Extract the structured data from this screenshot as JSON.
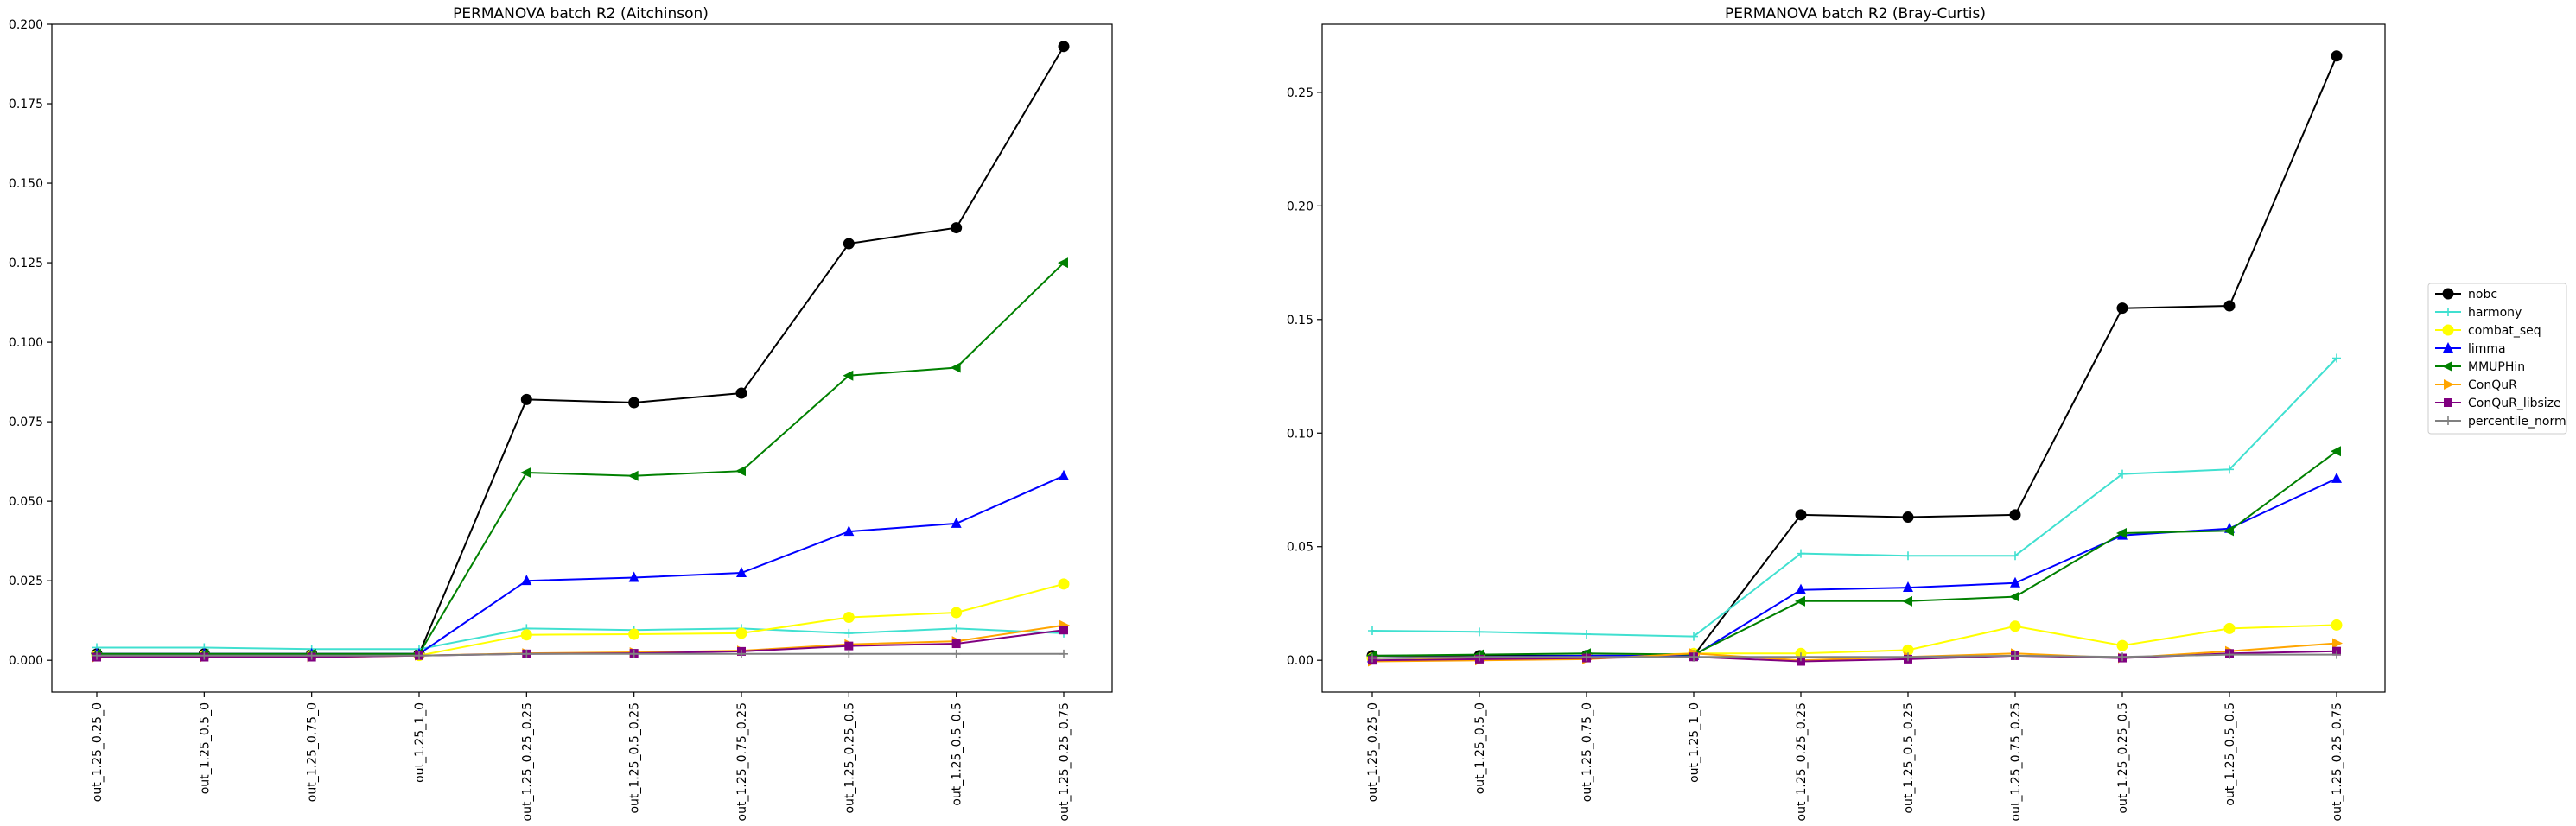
{
  "chart_data": [
    {
      "type": "line",
      "title": "PERMANOVA batch R2 (Aitchinson)",
      "xlabel": "",
      "ylabel": "",
      "categories": [
        "out_1.25_0.25_0",
        "out_1.25_0.5_0",
        "out_1.25_0.75_0",
        "out_1.25_1_0",
        "out_1.25_0.25_0.25",
        "out_1.25_0.5_0.25",
        "out_1.25_0.75_0.25",
        "out_1.25_0.25_0.5",
        "out_1.25_0.5_0.5",
        "out_1.25_0.25_0.75"
      ],
      "ylim": [
        -0.01,
        0.2
      ],
      "yticks": [
        0.0,
        0.025,
        0.05,
        0.075,
        0.1,
        0.125,
        0.15,
        0.175,
        0.2
      ],
      "ytick_labels": [
        "0.000",
        "0.025",
        "0.050",
        "0.075",
        "0.100",
        "0.125",
        "0.150",
        "0.175",
        "0.200"
      ],
      "grid": false,
      "series": [
        {
          "name": "nobc",
          "values": [
            0.002,
            0.002,
            0.002,
            0.002,
            0.082,
            0.081,
            0.084,
            0.131,
            0.136,
            0.193
          ]
        },
        {
          "name": "harmony",
          "values": [
            0.004,
            0.004,
            0.0035,
            0.0035,
            0.01,
            0.0095,
            0.01,
            0.0085,
            0.01,
            0.0085
          ]
        },
        {
          "name": "combat_seq",
          "values": [
            0.0015,
            0.0015,
            0.0015,
            0.0015,
            0.008,
            0.0082,
            0.0085,
            0.0135,
            0.015,
            0.024
          ]
        },
        {
          "name": "limma",
          "values": [
            0.002,
            0.002,
            0.002,
            0.002,
            0.025,
            0.026,
            0.0275,
            0.0405,
            0.043,
            0.058
          ]
        },
        {
          "name": "MMUPHin",
          "values": [
            0.002,
            0.002,
            0.002,
            0.002,
            0.059,
            0.058,
            0.0595,
            0.0895,
            0.092,
            0.125
          ]
        },
        {
          "name": "ConQuR",
          "values": [
            0.001,
            0.001,
            0.001,
            0.0015,
            0.0022,
            0.0025,
            0.003,
            0.005,
            0.006,
            0.011
          ]
        },
        {
          "name": "ConQuR_libsize",
          "values": [
            0.001,
            0.001,
            0.001,
            0.0015,
            0.002,
            0.0022,
            0.0028,
            0.0045,
            0.0052,
            0.0095
          ]
        },
        {
          "name": "percentile_norm",
          "values": [
            0.0015,
            0.0015,
            0.0015,
            0.0015,
            0.002,
            0.002,
            0.002,
            0.002,
            0.002,
            0.002
          ]
        }
      ]
    },
    {
      "type": "line",
      "title": "PERMANOVA batch R2 (Bray-Curtis)",
      "xlabel": "",
      "ylabel": "",
      "categories": [
        "out_1.25_0.25_0",
        "out_1.25_0.5_0",
        "out_1.25_0.75_0",
        "out_1.25_1_0",
        "out_1.25_0.25_0.25",
        "out_1.25_0.5_0.25",
        "out_1.25_0.75_0.25",
        "out_1.25_0.25_0.5",
        "out_1.25_0.5_0.5",
        "out_1.25_0.25_0.75"
      ],
      "ylim": [
        -0.014,
        0.28
      ],
      "yticks": [
        0.0,
        0.05,
        0.1,
        0.15,
        0.2,
        0.25
      ],
      "ytick_labels": [
        "0.00",
        "0.05",
        "0.10",
        "0.15",
        "0.20",
        "0.25"
      ],
      "grid": false,
      "legend_position": "right",
      "series": [
        {
          "name": "nobc",
          "values": [
            0.002,
            0.002,
            0.002,
            0.002,
            0.064,
            0.063,
            0.064,
            0.155,
            0.156,
            0.266
          ]
        },
        {
          "name": "harmony",
          "values": [
            0.013,
            0.0125,
            0.0115,
            0.0105,
            0.047,
            0.046,
            0.046,
            0.082,
            0.084,
            0.133
          ]
        },
        {
          "name": "combat_seq",
          "values": [
            0.001,
            0.001,
            0.0015,
            0.003,
            0.003,
            0.0045,
            0.015,
            0.0065,
            0.014,
            0.0155
          ]
        },
        {
          "name": "limma",
          "values": [
            0.001,
            0.0015,
            0.002,
            0.002,
            0.031,
            0.032,
            0.034,
            0.055,
            0.058,
            0.08
          ]
        },
        {
          "name": "MMUPHin",
          "values": [
            0.002,
            0.0025,
            0.003,
            0.0025,
            0.026,
            0.026,
            0.028,
            0.056,
            0.057,
            0.092
          ]
        },
        {
          "name": "ConQuR",
          "values": [
            -0.0005,
            0.0,
            0.0005,
            0.003,
            0.0,
            0.0015,
            0.003,
            0.001,
            0.004,
            0.0075
          ]
        },
        {
          "name": "ConQuR_libsize",
          "values": [
            0.0,
            0.0005,
            0.001,
            0.0015,
            -0.0005,
            0.0005,
            0.002,
            0.001,
            0.003,
            0.004
          ]
        },
        {
          "name": "percentile_norm",
          "values": [
            0.001,
            0.0015,
            0.0015,
            0.0015,
            0.0015,
            0.0015,
            0.002,
            0.0015,
            0.0025,
            0.0025
          ]
        }
      ]
    }
  ],
  "legend": {
    "entries": [
      {
        "name": "nobc",
        "color": "#000000",
        "marker": "circle"
      },
      {
        "name": "harmony",
        "color": "#40e0d0",
        "marker": "plus"
      },
      {
        "name": "combat_seq",
        "color": "#ffff00",
        "marker": "circle"
      },
      {
        "name": "limma",
        "color": "#0000ff",
        "marker": "triangle-up"
      },
      {
        "name": "MMUPHin",
        "color": "#008000",
        "marker": "triangle-left"
      },
      {
        "name": "ConQuR",
        "color": "#ffa500",
        "marker": "triangle-right"
      },
      {
        "name": "ConQuR_libsize",
        "color": "#800080",
        "marker": "square"
      },
      {
        "name": "percentile_norm",
        "color": "#808080",
        "marker": "plus"
      }
    ]
  }
}
